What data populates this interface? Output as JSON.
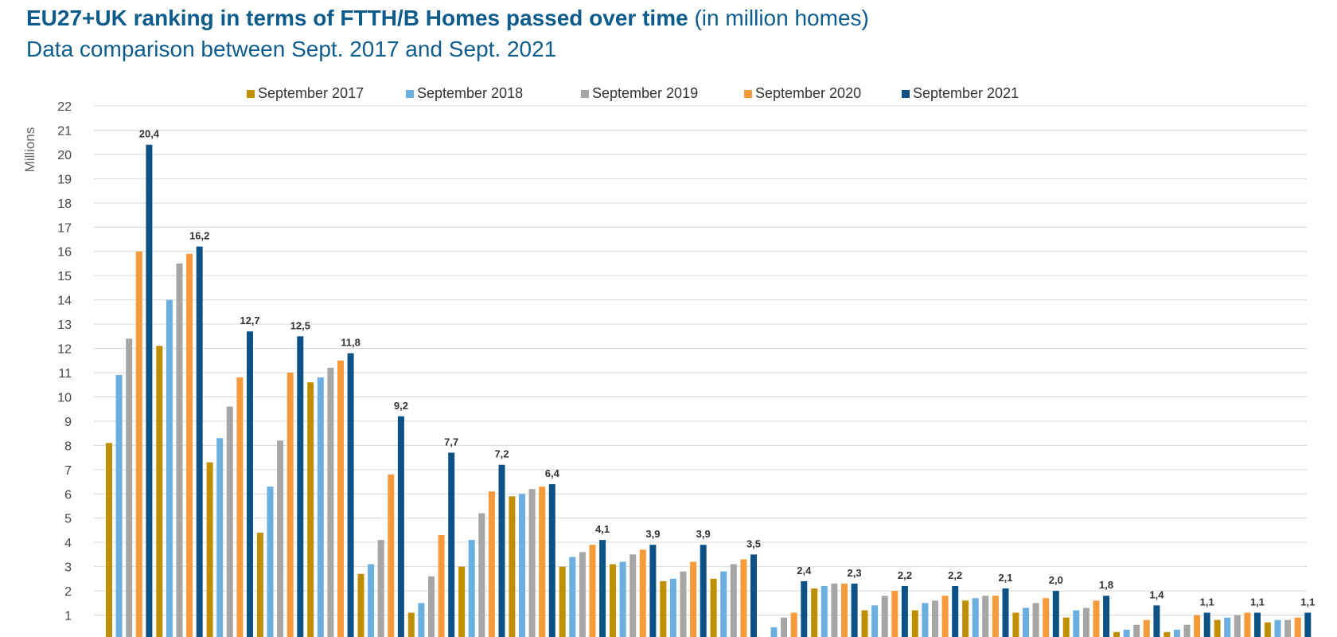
{
  "header": {
    "title": "EU27+UK ranking in terms of FTTH/B Homes passed over time",
    "title_unit": "(in million homes)",
    "subtitle": "Data comparison between Sept. 2017 and Sept. 2021"
  },
  "chart_data": {
    "type": "bar",
    "title": "EU27+UK ranking in terms of FTTH/B Homes passed over time",
    "subtitle": "Data comparison between Sept. 2017 and Sept. 2021",
    "ylabel": "Millions",
    "xlabel": "",
    "ylim": [
      0,
      22
    ],
    "yticks": [
      1,
      2,
      3,
      4,
      5,
      6,
      7,
      8,
      9,
      10,
      11,
      12,
      13,
      14,
      15,
      16,
      17,
      18,
      19,
      20,
      21,
      22
    ],
    "grid": true,
    "legend_position": "top",
    "series": [
      {
        "name": "September 2017",
        "color": "#bf8f00",
        "values": [
          8.1,
          12.1,
          7.3,
          4.4,
          10.6,
          2.7,
          1.1,
          3.0,
          5.9,
          3.0,
          3.1,
          2.4,
          2.5,
          0.1,
          2.1,
          1.2,
          1.2,
          1.6,
          1.1,
          0.9,
          0.3,
          0.3,
          0.8,
          0.7
        ]
      },
      {
        "name": "September 2018",
        "color": "#6aafe0",
        "values": [
          10.9,
          14.0,
          8.3,
          6.3,
          10.8,
          3.1,
          1.5,
          4.1,
          6.0,
          3.4,
          3.2,
          2.5,
          2.8,
          0.5,
          2.2,
          1.4,
          1.5,
          1.7,
          1.3,
          1.2,
          0.4,
          0.4,
          0.9,
          0.8
        ]
      },
      {
        "name": "September 2019",
        "color": "#a6a6a6",
        "values": [
          12.4,
          15.5,
          9.6,
          8.2,
          11.2,
          4.1,
          2.6,
          5.2,
          6.2,
          3.6,
          3.5,
          2.8,
          3.1,
          0.9,
          2.3,
          1.8,
          1.6,
          1.8,
          1.5,
          1.3,
          0.6,
          0.6,
          1.0,
          0.8
        ]
      },
      {
        "name": "September 2020",
        "color": "#f79a3a",
        "values": [
          16.0,
          15.9,
          10.8,
          11.0,
          11.5,
          6.8,
          4.3,
          6.1,
          6.3,
          3.9,
          3.7,
          3.2,
          3.3,
          1.1,
          2.3,
          2.0,
          1.8,
          1.8,
          1.7,
          1.6,
          0.8,
          1.0,
          1.1,
          0.9
        ]
      },
      {
        "name": "September 2021",
        "color": "#0d5287",
        "values": [
          20.4,
          16.2,
          12.7,
          12.5,
          11.8,
          9.2,
          7.7,
          7.2,
          6.4,
          4.1,
          3.9,
          3.9,
          3.5,
          2.4,
          2.3,
          2.2,
          2.2,
          2.1,
          2.0,
          1.8,
          1.4,
          1.1,
          1.1,
          1.1
        ]
      }
    ],
    "data_labels": [
      "20,4",
      "16,2",
      "12,7",
      "12,5",
      "11,8",
      "9,2",
      "7,7",
      "7,2",
      "6,4",
      "4,1",
      "3,9",
      "3,9",
      "3,5",
      "2,4",
      "2,3",
      "2,2",
      "2,2",
      "2,1",
      "2,0",
      "1,8",
      "1,4",
      "1,1",
      "1,1",
      "1,1"
    ]
  }
}
